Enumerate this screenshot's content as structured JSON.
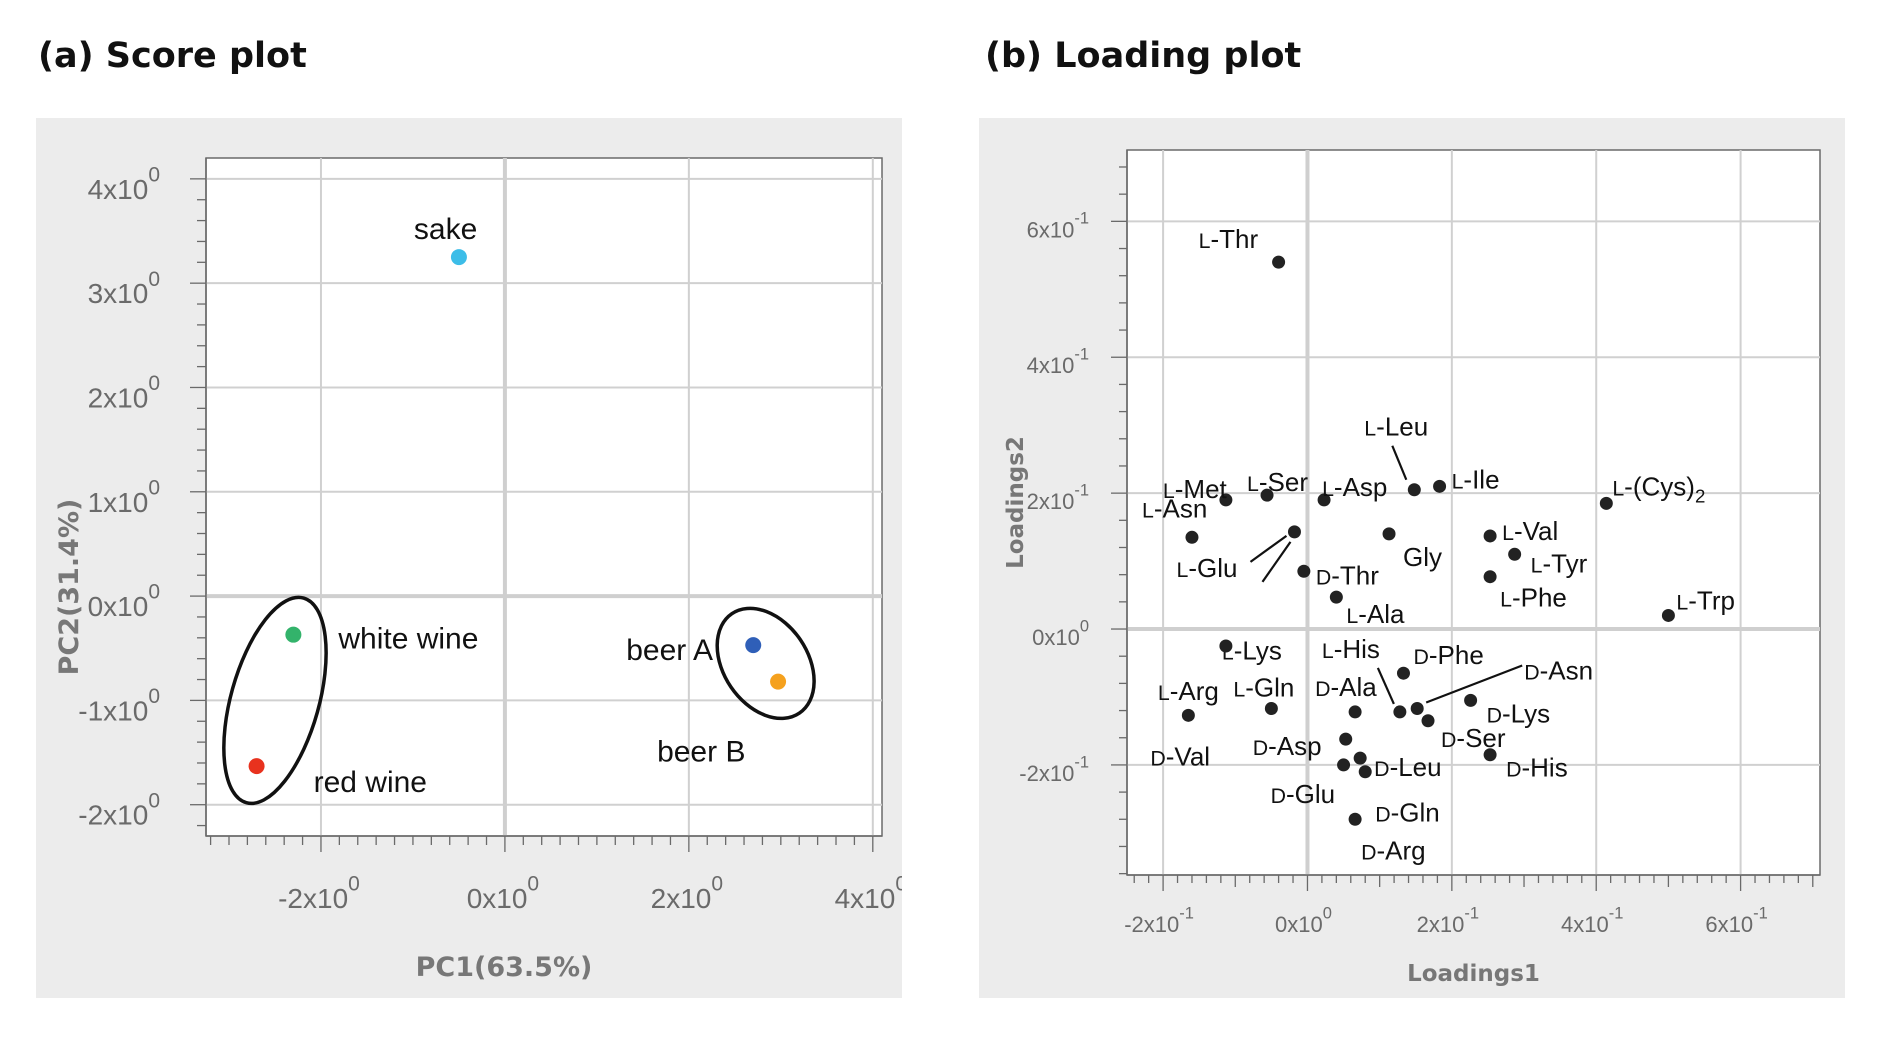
{
  "panels": {
    "a_title": "(a) Score plot",
    "b_title": "(b) Loading plot"
  },
  "colors": {
    "panel_bg": "#ececec",
    "sake": "#3cbde8",
    "white_wine": "#33b36b",
    "red_wine": "#e8321e",
    "beer_a": "#2f5fb8",
    "beer_b": "#f5a11e",
    "loading_point": "#222222"
  },
  "chart_data": [
    {
      "type": "scatter",
      "title": "(a) Score plot",
      "xlabel": "PC1(63.5%)",
      "ylabel": "PC2(31.4%)",
      "xlim": [
        -3.25,
        4.1
      ],
      "ylim": [
        -2.3,
        4.2
      ],
      "x_ticks": [
        {
          "value": -2,
          "base": "-2x10",
          "exp": "0"
        },
        {
          "value": 0,
          "base": "0x10",
          "exp": "0"
        },
        {
          "value": 2,
          "base": "2x10",
          "exp": "0"
        },
        {
          "value": 4,
          "base": "4x10",
          "exp": "0"
        }
      ],
      "y_ticks": [
        {
          "value": -2,
          "base": "-2x10",
          "exp": "0"
        },
        {
          "value": -1,
          "base": "-1x10",
          "exp": "0"
        },
        {
          "value": 0,
          "base": "0x10",
          "exp": "0"
        },
        {
          "value": 1,
          "base": "1x10",
          "exp": "0"
        },
        {
          "value": 2,
          "base": "2x10",
          "exp": "0"
        },
        {
          "value": 3,
          "base": "3x10",
          "exp": "0"
        },
        {
          "value": 4,
          "base": "4x10",
          "exp": "0"
        }
      ],
      "grid": true,
      "points": [
        {
          "label": "sake",
          "x": -0.5,
          "y": 3.25,
          "color": "#3cbde8"
        },
        {
          "label": "white wine",
          "x": -2.3,
          "y": -0.37,
          "color": "#33b36b"
        },
        {
          "label": "red wine",
          "x": -2.7,
          "y": -1.63,
          "color": "#e8321e"
        },
        {
          "label": "beer A",
          "x": 2.7,
          "y": -0.47,
          "color": "#2f5fb8"
        },
        {
          "label": "beer B",
          "x": 2.97,
          "y": -0.82,
          "color": "#f5a11e"
        }
      ],
      "groups_circled": [
        [
          "white wine",
          "red wine"
        ],
        [
          "beer A",
          "beer B"
        ]
      ]
    },
    {
      "type": "scatter",
      "title": "(b) Loading plot",
      "xlabel": "Loadings1",
      "ylabel": "Loadings2",
      "xlim": [
        -0.25,
        0.71
      ],
      "ylim": [
        -0.362,
        0.705
      ],
      "x_ticks": [
        {
          "value": -0.2,
          "base": "-2x10",
          "exp": "-1"
        },
        {
          "value": 0,
          "base": "0x10",
          "exp": "0"
        },
        {
          "value": 0.2,
          "base": "2x10",
          "exp": "-1"
        },
        {
          "value": 0.4,
          "base": "4x10",
          "exp": "-1"
        },
        {
          "value": 0.6,
          "base": "6x10",
          "exp": "-1"
        }
      ],
      "y_ticks": [
        {
          "value": -0.2,
          "base": "-2x10",
          "exp": "-1"
        },
        {
          "value": 0,
          "base": "0x10",
          "exp": "0"
        },
        {
          "value": 0.2,
          "base": "2x10",
          "exp": "-1"
        },
        {
          "value": 0.4,
          "base": "4x10",
          "exp": "-1"
        },
        {
          "value": 0.6,
          "base": "6x10",
          "exp": "-1"
        }
      ],
      "grid": true,
      "points": [
        {
          "label": "L-Thr",
          "x": -0.04,
          "y": 0.54
        },
        {
          "label": "L-Leu",
          "x": 0.148,
          "y": 0.205
        },
        {
          "label": "L-Ile",
          "x": 0.183,
          "y": 0.21
        },
        {
          "label": "L-Met",
          "x": -0.113,
          "y": 0.19
        },
        {
          "label": "L-Ser",
          "x": -0.056,
          "y": 0.197
        },
        {
          "label": "L-Asp",
          "x": 0.023,
          "y": 0.19
        },
        {
          "label": "L-(Cys)2",
          "x": 0.414,
          "y": 0.185
        },
        {
          "label": "L-Asn",
          "x": -0.16,
          "y": 0.135
        },
        {
          "label": "L-Glu",
          "x": -0.018,
          "y": 0.143
        },
        {
          "label": "L-Lys",
          "x": -0.005,
          "y": 0.085
        },
        {
          "label": "D-Thr",
          "x": -0.005,
          "y": 0.085
        },
        {
          "label": "Gly",
          "x": 0.113,
          "y": 0.14
        },
        {
          "label": "L-Val",
          "x": 0.253,
          "y": 0.137
        },
        {
          "label": "L-Tyr",
          "x": 0.287,
          "y": 0.11
        },
        {
          "label": "L-Phe",
          "x": 0.253,
          "y": 0.077
        },
        {
          "label": "L-Ala",
          "x": 0.04,
          "y": 0.047
        },
        {
          "label": "L-Trp",
          "x": 0.5,
          "y": 0.02
        },
        {
          "label": "L-Arg",
          "x": -0.113,
          "y": -0.025
        },
        {
          "label": "L-His",
          "x": 0.128,
          "y": -0.122
        },
        {
          "label": "D-Phe",
          "x": 0.133,
          "y": -0.065
        },
        {
          "label": "D-Asn",
          "x": 0.152,
          "y": -0.117
        },
        {
          "label": "L-Gln",
          "x": -0.05,
          "y": -0.117
        },
        {
          "label": "D-Ala",
          "x": 0.066,
          "y": -0.122
        },
        {
          "label": "D-Lys",
          "x": 0.226,
          "y": -0.105
        },
        {
          "label": "D-Ser",
          "x": 0.167,
          "y": -0.135
        },
        {
          "label": "D-Val",
          "x": -0.165,
          "y": -0.127
        },
        {
          "label": "D-Asp",
          "x": 0.053,
          "y": -0.162
        },
        {
          "label": "D-Leu",
          "x": 0.073,
          "y": -0.19
        },
        {
          "label": "D-His",
          "x": 0.253,
          "y": -0.185
        },
        {
          "label": "D-Glu",
          "x": 0.05,
          "y": -0.2
        },
        {
          "label": "D-Gln",
          "x": 0.08,
          "y": -0.21
        },
        {
          "label": "D-Arg",
          "x": 0.066,
          "y": -0.28
        }
      ]
    }
  ]
}
